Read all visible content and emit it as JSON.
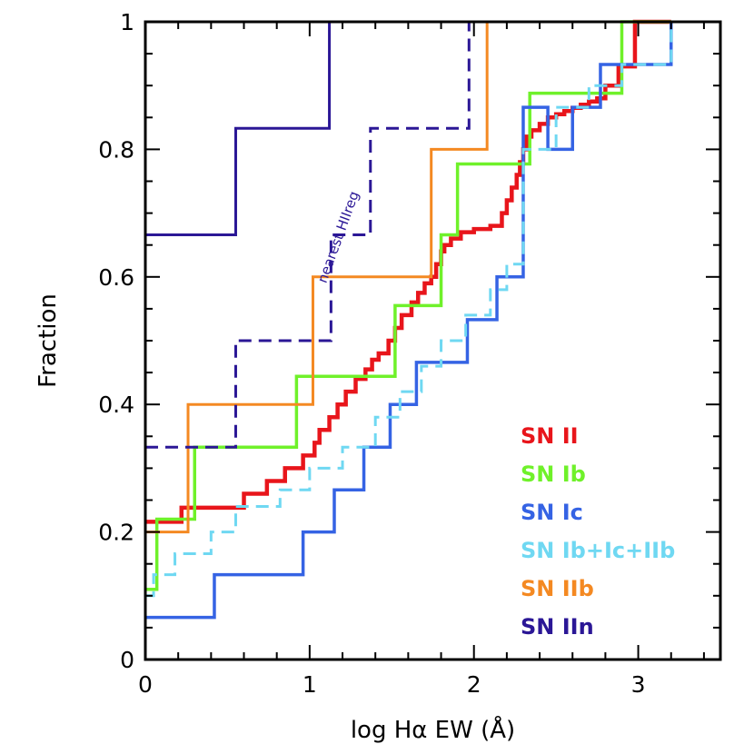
{
  "chart_data": {
    "type": "line",
    "step": true,
    "xlabel": "log Hα EW (Å)",
    "ylabel": "Fraction",
    "xlim": [
      0,
      3.5
    ],
    "ylim": [
      0,
      1
    ],
    "x_ticks": [
      0,
      1,
      2,
      3
    ],
    "x_tick_labels": [
      "0",
      "1",
      "2",
      "3"
    ],
    "y_ticks": [
      0,
      0.2,
      0.4,
      0.6,
      0.8,
      1
    ],
    "y_tick_labels": [
      "0",
      "0.2",
      "0.4",
      "0.6",
      "0.8",
      "1"
    ],
    "annotation": {
      "text": "nearest HIIreg",
      "x": 1.2,
      "y": 0.66,
      "angle_deg": -70,
      "color": "#2b1796"
    },
    "series": [
      {
        "name": "SN II",
        "label": "SN II",
        "color": "#e8151b",
        "dash": "solid",
        "width": 4.5,
        "x": [
          0.0,
          0.22,
          0.6,
          0.74,
          0.85,
          0.96,
          1.03,
          1.06,
          1.12,
          1.17,
          1.22,
          1.28,
          1.34,
          1.38,
          1.42,
          1.48,
          1.52,
          1.56,
          1.62,
          1.66,
          1.7,
          1.74,
          1.77,
          1.8,
          1.82,
          1.86,
          1.92,
          2.0,
          2.1,
          2.17,
          2.2,
          2.23,
          2.26,
          2.28,
          2.3,
          2.32,
          2.35,
          2.4,
          2.45,
          2.5,
          2.55,
          2.6,
          2.65,
          2.7,
          2.75,
          2.8,
          2.88,
          2.98,
          3.2
        ],
        "y": [
          0.216,
          0.238,
          0.26,
          0.28,
          0.3,
          0.32,
          0.34,
          0.36,
          0.38,
          0.4,
          0.42,
          0.44,
          0.455,
          0.47,
          0.48,
          0.5,
          0.52,
          0.54,
          0.56,
          0.575,
          0.59,
          0.6,
          0.62,
          0.64,
          0.65,
          0.66,
          0.67,
          0.675,
          0.68,
          0.7,
          0.72,
          0.74,
          0.76,
          0.78,
          0.8,
          0.82,
          0.83,
          0.84,
          0.85,
          0.855,
          0.86,
          0.865,
          0.87,
          0.875,
          0.88,
          0.9,
          0.93,
          1.0,
          1.0
        ]
      },
      {
        "name": "SN Ib",
        "label": "SN Ib",
        "color": "#6ff12a",
        "dash": "solid",
        "width": 3.5,
        "x": [
          0.0,
          0.07,
          0.3,
          0.92,
          1.52,
          1.8,
          1.9,
          2.04,
          2.34,
          2.9,
          3.2
        ],
        "y": [
          0.11,
          0.22,
          0.333,
          0.444,
          0.555,
          0.666,
          0.777,
          0.777,
          0.888,
          1.0,
          1.0
        ]
      },
      {
        "name": "SN Ic",
        "label": "SN Ic",
        "color": "#3563e4",
        "dash": "solid",
        "width": 3.5,
        "x": [
          0.0,
          0.42,
          0.96,
          1.15,
          1.33,
          1.49,
          1.65,
          1.96,
          2.14,
          2.3,
          2.45,
          2.6,
          2.77,
          2.9,
          3.2
        ],
        "y": [
          0.066,
          0.133,
          0.2,
          0.266,
          0.333,
          0.4,
          0.466,
          0.533,
          0.6,
          0.866,
          0.8,
          0.866,
          0.933,
          0.933,
          1.0
        ]
      },
      {
        "name": "SN Ib+Ic+IIb",
        "label": "SN Ib+Ic+IIb",
        "color": "#6fd8f2",
        "dash": "dashed",
        "width": 3,
        "x": [
          0.0,
          0.05,
          0.18,
          0.4,
          0.55,
          0.82,
          1.0,
          1.2,
          1.4,
          1.55,
          1.68,
          1.8,
          1.95,
          2.1,
          2.2,
          2.3,
          2.5,
          2.7,
          2.9,
          3.2
        ],
        "y": [
          0.1,
          0.133,
          0.166,
          0.2,
          0.24,
          0.266,
          0.3,
          0.333,
          0.38,
          0.42,
          0.46,
          0.5,
          0.54,
          0.58,
          0.62,
          0.8,
          0.866,
          0.9,
          0.933,
          1.0
        ]
      },
      {
        "name": "SN IIb",
        "label": "SN IIb",
        "color": "#f48922",
        "dash": "solid",
        "width": 3,
        "x": [
          0.0,
          0.26,
          1.02,
          1.74,
          2.08,
          2.3
        ],
        "y": [
          0.2,
          0.4,
          0.6,
          0.8,
          1.0,
          1.0
        ]
      },
      {
        "name": "SN IIn",
        "label": "SN IIn",
        "color": "#2b1796",
        "dash": "solid",
        "width": 3,
        "x": [
          0.0,
          0.55,
          1.12,
          1.5
        ],
        "y": [
          0.666,
          0.833,
          1.0,
          1.0
        ]
      },
      {
        "name": "SN IIn nearest HIIreg",
        "label": "",
        "color": "#2b1796",
        "dash": "dashed",
        "width": 3,
        "x": [
          0.0,
          0.55,
          1.13,
          1.37,
          1.97,
          2.1
        ],
        "y": [
          0.333,
          0.5,
          0.666,
          0.833,
          1.0,
          1.0
        ]
      }
    ],
    "legend": {
      "placement": "lower-right"
    }
  }
}
